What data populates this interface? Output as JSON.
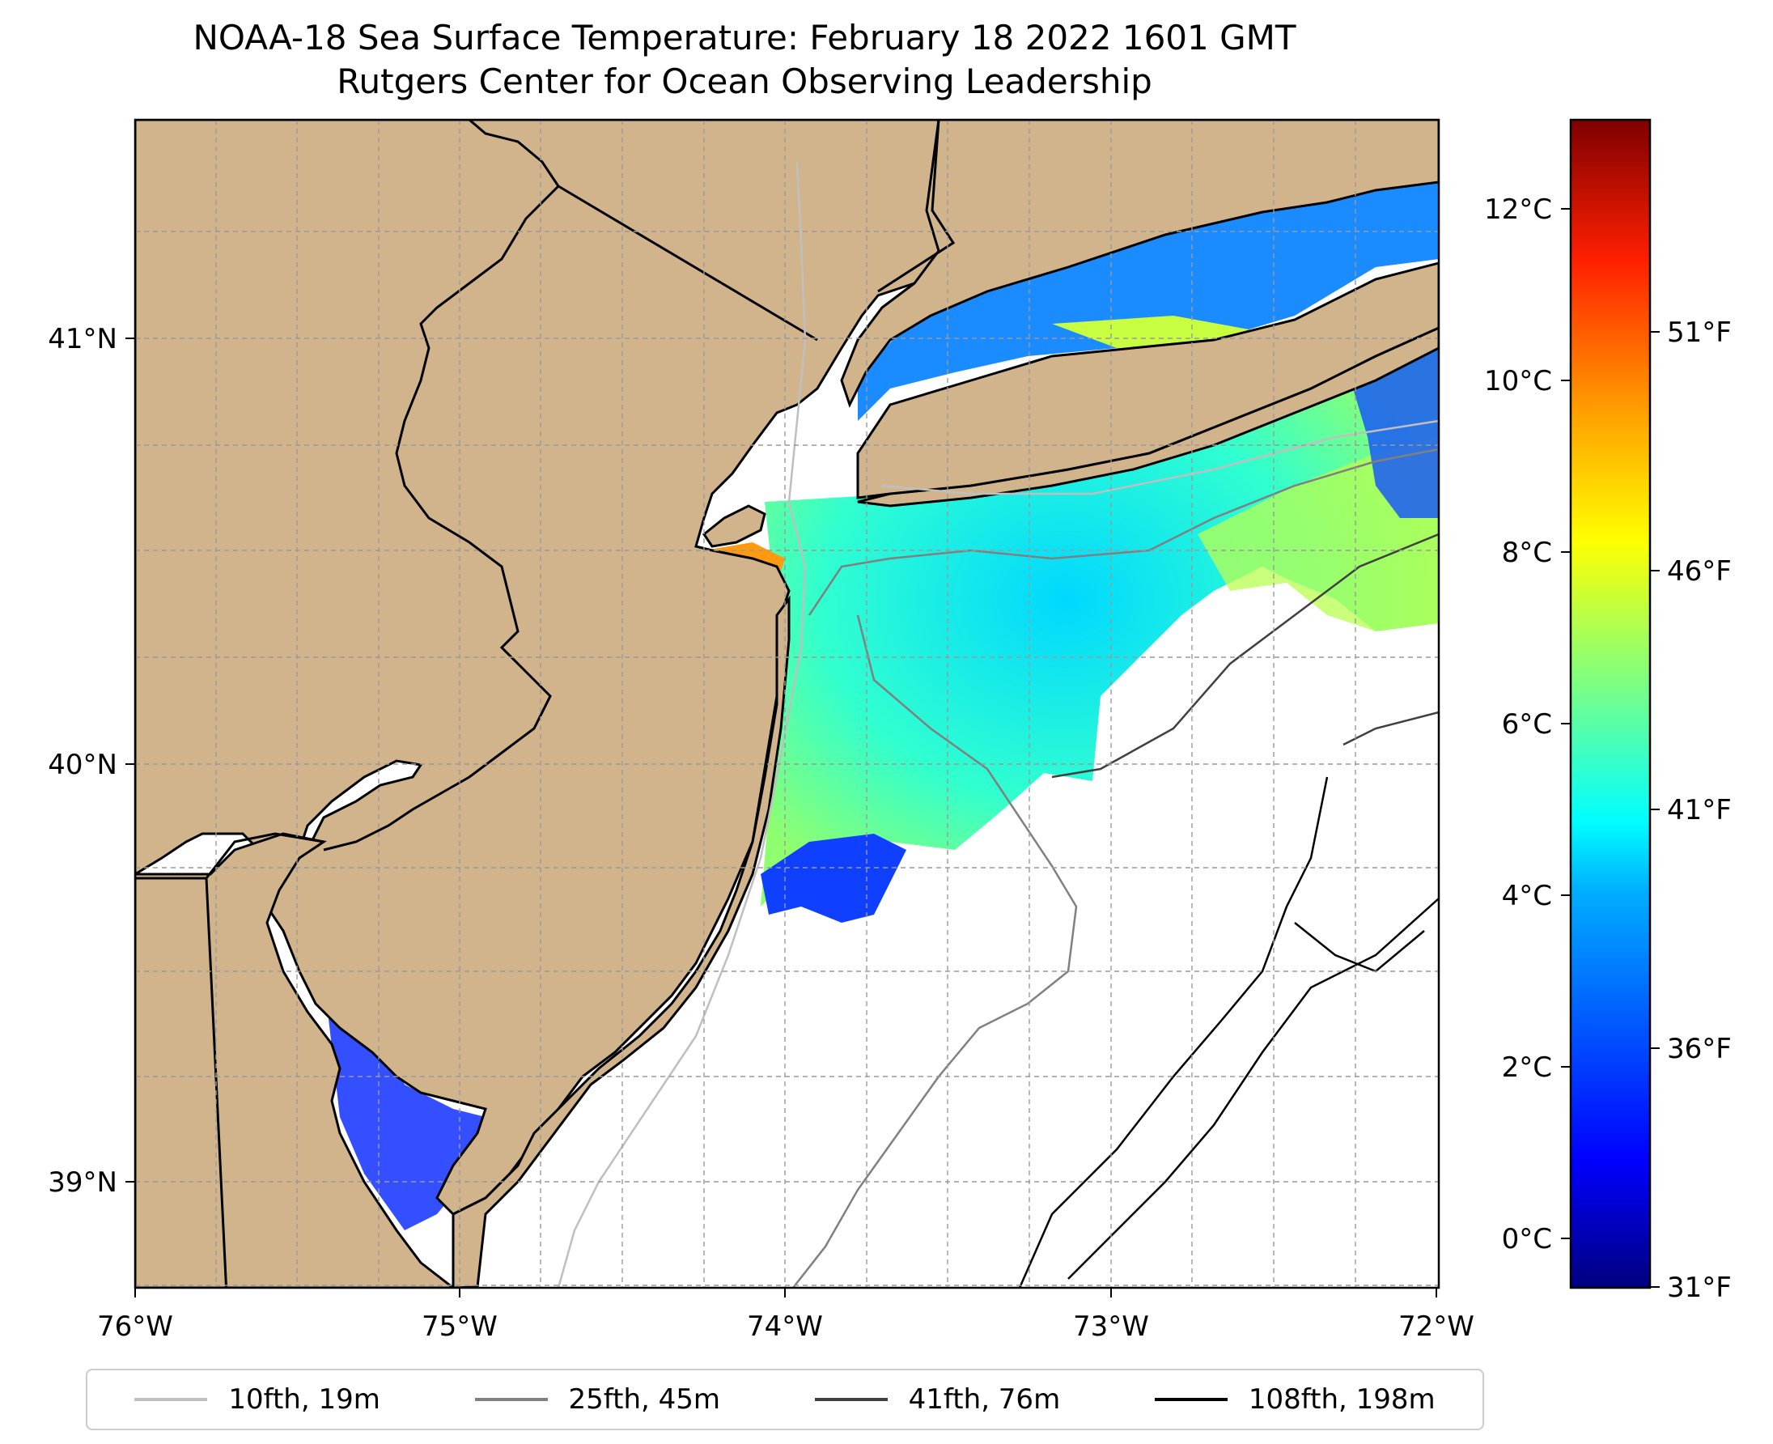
{
  "title": "NOAA-18 Sea Surface Temperature: February 18 2022 1601 GMT",
  "subtitle": "Rutgers Center for Ocean Observing Leadership",
  "map": {
    "x_ticks": [
      "76°W",
      "75°W",
      "74°W",
      "73°W",
      "72°W"
    ],
    "y_ticks": [
      "41°N",
      "40°N",
      "39°N"
    ],
    "land_color": "#D2B48C",
    "coastline_color": "#000000",
    "grid": true
  },
  "colorbar": {
    "colormap": "jet",
    "celsius_ticks": [
      "12°C",
      "10°C",
      "8°C",
      "6°C",
      "4°C",
      "2°C",
      "0°C"
    ],
    "fahrenheit_ticks": [
      "51°F",
      "46°F",
      "41°F",
      "36°F",
      "31°F"
    ],
    "colors": [
      "#00007F",
      "#0000FF",
      "#007FFF",
      "#00FFFF",
      "#7FFF7F",
      "#FFFF00",
      "#FF7F00",
      "#FF0000",
      "#7F0000"
    ]
  },
  "legend": {
    "items": [
      {
        "label": "10fth, 19m",
        "color": "#bfbfbf"
      },
      {
        "label": "25fth, 45m",
        "color": "#808080"
      },
      {
        "label": "41fth, 76m",
        "color": "#404040"
      },
      {
        "label": "108fth, 198m",
        "color": "#000000"
      }
    ]
  }
}
